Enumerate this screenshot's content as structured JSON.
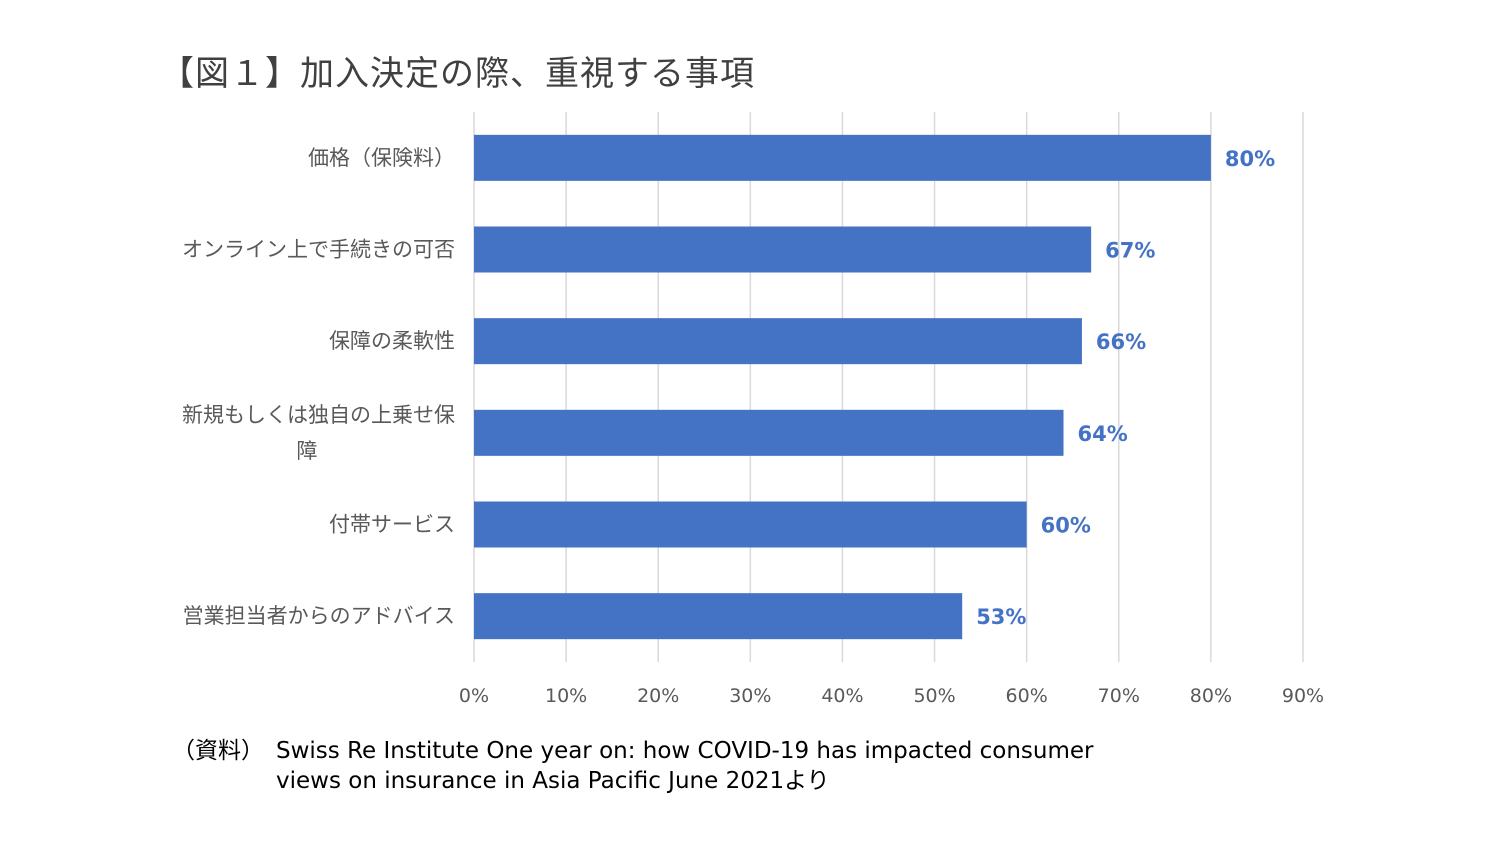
{
  "chart_data": {
    "type": "bar",
    "orientation": "horizontal",
    "title": "【図１】加入決定の際、重視する事項",
    "categories": [
      "価格（保険料）",
      "オンライン上で手続きの可否",
      "保障の柔軟性",
      "新規もしくは独自の上乗せ保障",
      "付帯サービス",
      "営業担当者からのアドバイス"
    ],
    "values": [
      80,
      67,
      66,
      64,
      60,
      53
    ],
    "data_labels": [
      "80%",
      "67%",
      "66%",
      "64%",
      "60%",
      "53%"
    ],
    "xlim": [
      0,
      90
    ],
    "xticks": [
      "0%",
      "10%",
      "20%",
      "30%",
      "40%",
      "50%",
      "60%",
      "70%",
      "80%",
      "90%"
    ],
    "grid": "vertical",
    "legend": "none",
    "bar_color": "#4472c4",
    "label_color": "#4472c4",
    "grid_color": "#d9d9d9"
  },
  "source": {
    "prefix": "（資料）",
    "text": "Swiss Re Institute  One year on: how COVID-19 has impacted consumer\nviews on insurance in Asia Pacific   June 2021より"
  }
}
